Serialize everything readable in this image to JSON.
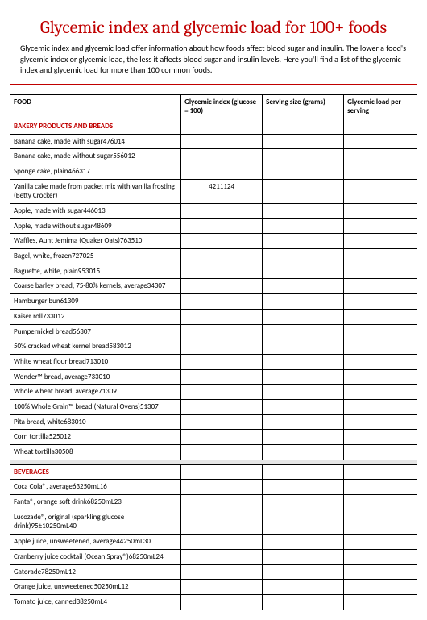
{
  "title": "Glycemic index and glycemic load for 100+ foods",
  "intro": "Glycemic index and glycemic load offer information about how foods affect blood sugar and insulin. The lower a food's glycemic index or glycemic load, the less it affects blood sugar and insulin levels. Here you'll find a list of the glycemic index and glycemic load for more than 100 common foods.",
  "columns": {
    "food": "FOOD",
    "gi": "Glycemic index (glucose = 100)",
    "ss": "Serving size (grams)",
    "gl": "Glycemic load per serving"
  },
  "sections": [
    {
      "name": "BAKERY PRODUCTS AND BREADS",
      "rows": [
        {
          "food": "Banana cake, made with sugar",
          "gi": "47",
          "ss": "60",
          "gl": "14"
        },
        {
          "food": "Banana cake, made without sugar",
          "gi": "55",
          "ss": "60",
          "gl": "12"
        },
        {
          "food": "Sponge cake, plain",
          "gi": "46",
          "ss": "63",
          "gl": "17"
        },
        {
          "food": "Vanilla cake made from packet mix with vanilla frosting (Betty Crocker)",
          "gi": "42",
          "ss": "111",
          "gl": "24",
          "giCenter": true
        },
        {
          "food": "Apple, made with sugar",
          "gi": "44",
          "ss": "60",
          "gl": "13"
        },
        {
          "food": "Apple, made without sugar",
          "gi": "48",
          "ss": "60",
          "gl": "9"
        },
        {
          "food": "Waffles, Aunt Jemima (Quaker Oats)",
          "gi": "76",
          "ss": "35",
          "gl": "10"
        },
        {
          "food": "Bagel, white, frozen",
          "gi": "72",
          "ss": "70",
          "gl": "25"
        },
        {
          "food": "Baguette, white, plain",
          "gi": "95",
          "ss": "30",
          "gl": "15"
        },
        {
          "food": "Coarse barley bread, 75-80% kernels, average",
          "gi": "34",
          "ss": "30",
          "gl": "7"
        },
        {
          "food": "Hamburger bun",
          "gi": "61",
          "ss": "30",
          "gl": "9"
        },
        {
          "food": "Kaiser roll",
          "gi": "73",
          "ss": "30",
          "gl": "12"
        },
        {
          "food": "Pumpernickel bread",
          "gi": "56",
          "ss": "30",
          "gl": "7"
        },
        {
          "food": "50% cracked wheat kernel bread",
          "gi": "58",
          "ss": "30",
          "gl": "12"
        },
        {
          "food": "White wheat flour bread",
          "gi": "71",
          "ss": "30",
          "gl": "10"
        },
        {
          "food": "Wonder™ bread, average",
          "gi": "73",
          "ss": "30",
          "gl": "10"
        },
        {
          "food": "Whole wheat bread, average",
          "gi": "71",
          "ss": "30",
          "gl": "9"
        },
        {
          "food": "100% Whole Grain™ bread (Natural Ovens)",
          "gi": "51",
          "ss": "30",
          "gl": "7"
        },
        {
          "food": "Pita bread, white",
          "gi": "68",
          "ss": "30",
          "gl": "10"
        },
        {
          "food": "Corn tortilla",
          "gi": "52",
          "ss": "50",
          "gl": "12"
        },
        {
          "food": "Wheat tortilla",
          "gi": "30",
          "ss": "50",
          "gl": "8"
        }
      ]
    },
    {
      "name": "BEVERAGES",
      "rows": [
        {
          "food": "Coca Cola®, average",
          "gi": "63",
          "ss": "250 mL",
          "gl": "16"
        },
        {
          "food": "Fanta®, orange soft drink",
          "gi": "68",
          "ss": "250 mL",
          "gl": "23"
        },
        {
          "food": "Lucozade®, original (sparkling glucose drink)",
          "gi": "95±10",
          "ss": "250 mL",
          "gl": "40"
        },
        {
          "food": "Apple juice, unsweetened, average",
          "gi": "44",
          "ss": "250 mL",
          "gl": "30"
        },
        {
          "food": "Cranberry juice cocktail (Ocean Spray®)",
          "gi": "68",
          "ss": "250 mL",
          "gl": "24"
        },
        {
          "food": "Gatorade",
          "gi": "78",
          "ss": "250 mL",
          "gl": "12"
        },
        {
          "food": "Orange juice, unsweetened",
          "gi": "50",
          "ss": "250 mL",
          "gl": "12"
        },
        {
          "food": "Tomato juice, canned",
          "gi": "38",
          "ss": "250 mL",
          "gl": "4"
        }
      ]
    }
  ],
  "style": {
    "title_color": "#c00000",
    "border_color": "#000000",
    "spacer_bg": "#e6e6e6",
    "background": "#ffffff"
  }
}
